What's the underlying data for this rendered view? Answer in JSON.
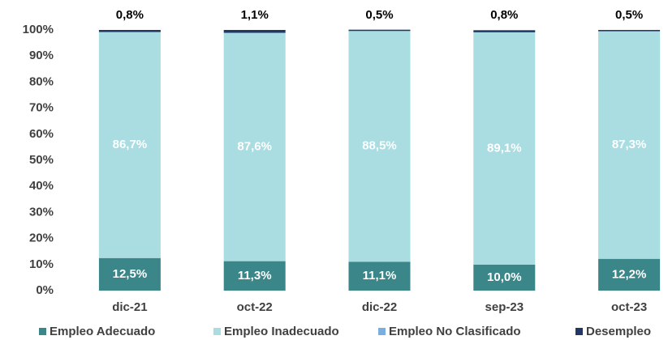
{
  "chart_data": {
    "type": "stacked_bar",
    "categories": [
      "dic-21",
      "oct-22",
      "dic-22",
      "sep-23",
      "oct-23"
    ],
    "series": [
      {
        "name": "Empleo Adecuado",
        "color": "#3b8688",
        "values": [
          12.5,
          11.3,
          11.1,
          10.0,
          12.2
        ],
        "value_labels": [
          "12,5%",
          "11,3%",
          "11,1%",
          "10,0%",
          "12,2%"
        ]
      },
      {
        "name": "Empleo Inadecuado",
        "color": "#a9dde2",
        "values": [
          86.7,
          87.6,
          88.5,
          89.1,
          87.3
        ],
        "value_labels": [
          "86,7%",
          "87,6%",
          "88,5%",
          "89,1%",
          "87,3%"
        ]
      },
      {
        "name": "Empleo No Clasificado",
        "color": "#7aaee0",
        "values": [
          0,
          0,
          0,
          0,
          0
        ]
      },
      {
        "name": "Desempleo",
        "color": "#1f3864",
        "values": [
          0.8,
          1.1,
          0.5,
          0.8,
          0.5
        ],
        "value_labels": [
          "0,8%",
          "1,1%",
          "0,5%",
          "0,8%",
          "0,5%"
        ]
      }
    ],
    "ylim": [
      0,
      100
    ],
    "yticks": [
      {
        "value": 0,
        "label": "0%"
      },
      {
        "value": 10,
        "label": "10%"
      },
      {
        "value": 20,
        "label": "20%"
      },
      {
        "value": 30,
        "label": "30%"
      },
      {
        "value": 40,
        "label": "40%"
      },
      {
        "value": 50,
        "label": "50%"
      },
      {
        "value": 60,
        "label": "60%"
      },
      {
        "value": 70,
        "label": "70%"
      },
      {
        "value": 80,
        "label": "80%"
      },
      {
        "value": 90,
        "label": "90%"
      },
      {
        "value": 100,
        "label": "100%"
      }
    ],
    "grid": false
  }
}
